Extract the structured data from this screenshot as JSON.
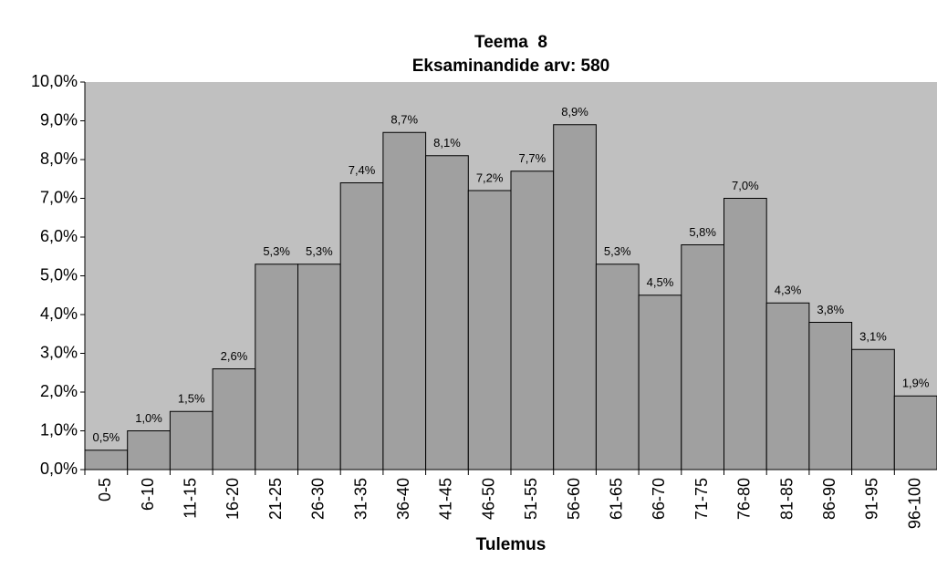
{
  "chart_data": {
    "type": "bar",
    "title": "Teema  8",
    "subtitle": "Eksaminandide arv: 580",
    "x_label": "Tulemus",
    "categories": [
      "0-5",
      "6-10",
      "11-15",
      "16-20",
      "21-25",
      "26-30",
      "31-35",
      "36-40",
      "41-45",
      "46-50",
      "51-55",
      "56-60",
      "61-65",
      "66-70",
      "71-75",
      "76-80",
      "81-85",
      "86-90",
      "91-95",
      "96-100"
    ],
    "values": [
      0.5,
      1.0,
      1.5,
      2.6,
      5.3,
      5.3,
      7.4,
      8.7,
      8.1,
      7.2,
      7.7,
      8.9,
      5.3,
      4.5,
      5.8,
      7.0,
      4.3,
      3.8,
      3.1,
      1.9
    ],
    "value_labels": [
      "0,5%",
      "1,0%",
      "1,5%",
      "2,6%",
      "5,3%",
      "5,3%",
      "7,4%",
      "8,7%",
      "8,1%",
      "7,2%",
      "7,7%",
      "8,9%",
      "5,3%",
      "4,5%",
      "5,8%",
      "7,0%",
      "4,3%",
      "3,8%",
      "3,1%",
      "1,9%"
    ],
    "color": "#a0a0a0",
    "plot_background": "#c0c0c0",
    "ylim": [
      0,
      10
    ],
    "yticks": [
      {
        "value": 0,
        "label": "0,0%"
      },
      {
        "value": 1,
        "label": "1,0%"
      },
      {
        "value": 2,
        "label": "2,0%"
      },
      {
        "value": 3,
        "label": "3,0%"
      },
      {
        "value": 4,
        "label": "4,0%"
      },
      {
        "value": 5,
        "label": "5,0%"
      },
      {
        "value": 6,
        "label": "6,0%"
      },
      {
        "value": 7,
        "label": "7,0%"
      },
      {
        "value": 8,
        "label": "8,0%"
      },
      {
        "value": 9,
        "label": "9,0%"
      },
      {
        "value": 10,
        "label": "10,0%"
      }
    ],
    "grid": false
  }
}
